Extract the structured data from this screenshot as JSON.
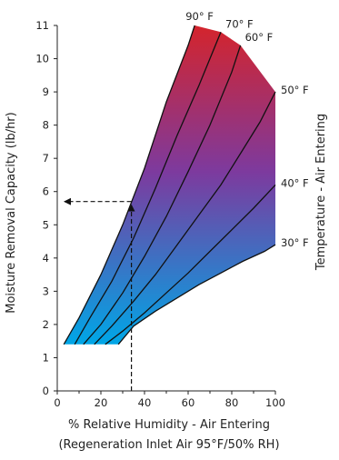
{
  "chart_data": {
    "type": "line",
    "title": "",
    "xlabel": "% Relative Humidity - Air Entering",
    "xlabel2": "(Regeneration Inlet Air 95°F/50% RH)",
    "ylabel": "Moisture Removal Capacity (lb/hr)",
    "right_label": "Temperature - Air Entering",
    "xlim": [
      0,
      100
    ],
    "ylim": [
      0,
      11
    ],
    "x_ticks": [
      "0",
      "20",
      "40",
      "60",
      "80",
      "100"
    ],
    "y_ticks": [
      "0",
      "1",
      "2",
      "3",
      "4",
      "5",
      "6",
      "7",
      "8",
      "9",
      "10",
      "11"
    ],
    "grid": false,
    "gradient_colors": {
      "top": "#d4242c",
      "middle": "#7d3a9e",
      "bottom": "#00a6e6"
    },
    "series": [
      {
        "name": "90° F",
        "x": [
          3,
          10,
          20,
          30,
          40,
          50,
          60,
          63
        ],
        "y": [
          1.4,
          2.2,
          3.5,
          5.0,
          6.7,
          8.7,
          10.4,
          11.0
        ]
      },
      {
        "name": "70° F",
        "x": [
          8,
          15,
          25,
          35,
          45,
          55,
          65,
          75
        ],
        "y": [
          1.4,
          2.2,
          3.3,
          4.6,
          6.1,
          7.7,
          9.2,
          10.8
        ]
      },
      {
        "name": "60° F",
        "x": [
          12,
          20,
          30,
          40,
          50,
          60,
          70,
          80,
          84
        ],
        "y": [
          1.4,
          2.0,
          2.95,
          4.05,
          5.25,
          6.6,
          8.0,
          9.6,
          10.4
        ]
      },
      {
        "name": "50° F",
        "x": [
          17,
          25,
          35,
          45,
          55,
          65,
          75,
          85,
          93,
          100
        ],
        "y": [
          1.4,
          1.95,
          2.7,
          3.5,
          4.4,
          5.3,
          6.2,
          7.25,
          8.1,
          9.0
        ]
      },
      {
        "name": "40° F",
        "x": [
          22,
          30,
          40,
          50,
          60,
          70,
          80,
          90,
          100
        ],
        "y": [
          1.4,
          1.8,
          2.35,
          2.95,
          3.55,
          4.2,
          4.85,
          5.5,
          6.2
        ]
      },
      {
        "name": "30° F",
        "x": [
          28,
          35,
          45,
          55,
          65,
          75,
          85,
          95,
          100
        ],
        "y": [
          1.4,
          1.95,
          2.4,
          2.8,
          3.2,
          3.55,
          3.9,
          4.2,
          4.4
        ]
      }
    ],
    "envelope": {
      "x": [
        3,
        10,
        20,
        30,
        40,
        50,
        60,
        63,
        75,
        84,
        100,
        100,
        95,
        85,
        75,
        65,
        55,
        45,
        35,
        28,
        3
      ],
      "y": [
        1.4,
        2.2,
        3.5,
        5.0,
        6.7,
        8.7,
        10.4,
        11.0,
        10.8,
        10.4,
        9.0,
        4.4,
        4.2,
        3.9,
        3.55,
        3.2,
        2.8,
        2.4,
        1.95,
        1.4,
        1.4
      ]
    },
    "example": {
      "rh": 34,
      "capacity": 5.7
    }
  }
}
